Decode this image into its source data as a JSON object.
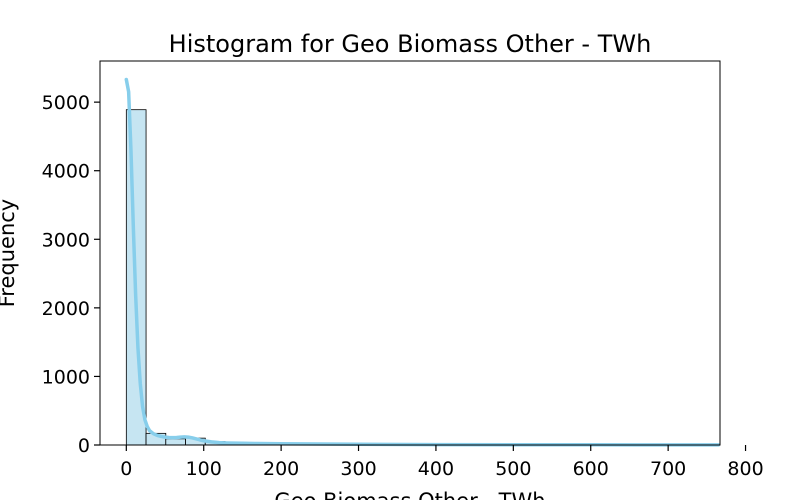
{
  "chart_data": {
    "type": "bar",
    "subtype": "histogram",
    "title": "Histogram for Geo Biomass Other - TWh",
    "xlabel": "Geo Biomass Other - TWh",
    "ylabel": "Frequency",
    "xlim": [
      -34,
      767
    ],
    "ylim": [
      0,
      5600
    ],
    "x_ticks": [
      0,
      100,
      200,
      300,
      400,
      500,
      600,
      700,
      800
    ],
    "y_ticks": [
      0,
      1000,
      2000,
      3000,
      4000,
      5000
    ],
    "grid": false,
    "bin_width": 25.5,
    "bins": [
      {
        "start": 0.0,
        "end": 25.5,
        "count": 4890
      },
      {
        "start": 25.5,
        "end": 51.0,
        "count": 170
      },
      {
        "start": 51.0,
        "end": 76.5,
        "count": 90
      },
      {
        "start": 76.5,
        "end": 102.0,
        "count": 100
      },
      {
        "start": 102.0,
        "end": 127.5,
        "count": 50
      },
      {
        "start": 127.5,
        "end": 153.0,
        "count": 35
      },
      {
        "start": 153.0,
        "end": 178.5,
        "count": 30
      },
      {
        "start": 178.5,
        "end": 204.0,
        "count": 20
      },
      {
        "start": 204.0,
        "end": 229.5,
        "count": 20
      },
      {
        "start": 229.5,
        "end": 255.0,
        "count": 15
      },
      {
        "start": 255.0,
        "end": 280.5,
        "count": 12
      },
      {
        "start": 280.5,
        "end": 306.0,
        "count": 10
      },
      {
        "start": 306.0,
        "end": 331.5,
        "count": 8
      },
      {
        "start": 331.5,
        "end": 357.0,
        "count": 6
      },
      {
        "start": 357.0,
        "end": 382.5,
        "count": 6
      },
      {
        "start": 382.5,
        "end": 408.0,
        "count": 5
      },
      {
        "start": 408.0,
        "end": 433.5,
        "count": 5
      },
      {
        "start": 433.5,
        "end": 459.0,
        "count": 4
      },
      {
        "start": 459.0,
        "end": 484.5,
        "count": 4
      },
      {
        "start": 484.5,
        "end": 510.0,
        "count": 3
      },
      {
        "start": 510.0,
        "end": 535.5,
        "count": 3
      },
      {
        "start": 535.5,
        "end": 561.0,
        "count": 3
      },
      {
        "start": 561.0,
        "end": 586.5,
        "count": 2
      },
      {
        "start": 586.5,
        "end": 612.0,
        "count": 2
      },
      {
        "start": 612.0,
        "end": 637.5,
        "count": 2
      },
      {
        "start": 637.5,
        "end": 663.0,
        "count": 2
      },
      {
        "start": 663.0,
        "end": 688.5,
        "count": 1
      },
      {
        "start": 688.5,
        "end": 714.0,
        "count": 1
      },
      {
        "start": 714.0,
        "end": 739.5,
        "count": 1
      },
      {
        "start": 739.5,
        "end": 765.0,
        "count": 1
      }
    ],
    "kde": {
      "x": [
        0,
        3,
        6,
        9,
        12,
        15,
        18,
        21,
        24,
        27,
        30,
        35,
        40,
        45,
        50,
        55,
        60,
        65,
        70,
        75,
        80,
        85,
        90,
        95,
        100,
        110,
        120,
        130,
        150,
        170,
        200,
        250,
        300,
        400,
        500,
        600,
        700,
        765
      ],
      "y": [
        5330,
        5150,
        4300,
        3200,
        2200,
        1420,
        900,
        560,
        370,
        270,
        210,
        165,
        140,
        125,
        115,
        110,
        108,
        110,
        115,
        118,
        115,
        105,
        90,
        75,
        62,
        45,
        35,
        30,
        25,
        22,
        18,
        14,
        10,
        6,
        4,
        3,
        2,
        1
      ]
    },
    "colors": {
      "bar_fill": "#c6e5f2",
      "bar_edge": "#000000",
      "kde_line": "#87ceeb"
    }
  }
}
